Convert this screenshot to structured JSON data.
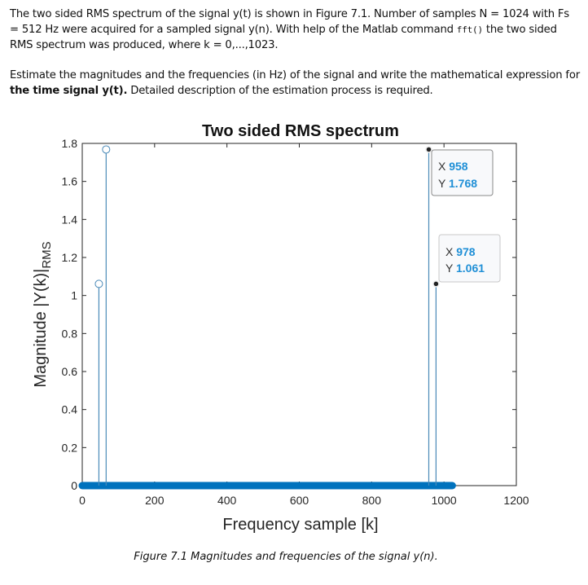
{
  "problem": {
    "paragraph1": {
      "part1": "The two sided RMS spectrum of the signal y(t) is shown in Figure 7.1. Number of samples N = 1024 with Fs = 512 Hz were acquired for a sampled signal y(n). With help of the Matlab command ",
      "code": "fft()",
      "part2": " the two sided RMS spectrum was produced, where k = 0,...,1023."
    },
    "paragraph2": {
      "part1": "Estimate the magnitudes and the frequencies (in Hz) of the signal and write the mathematical expression for ",
      "bold": "the time signal y(t).",
      "part2": " Detailed description of the estimation process is required."
    }
  },
  "figure": {
    "caption": "Figure 7.1 Magnitudes and frequencies of the signal y(n).",
    "datatips": [
      {
        "x_label": "X",
        "x_value": "958",
        "y_label": "Y",
        "y_value": "1.768"
      },
      {
        "x_label": "X",
        "x_value": "978",
        "y_label": "Y",
        "y_value": "1.061"
      }
    ]
  },
  "chart_data": {
    "type": "stem",
    "title": "Two sided RMS spectrum",
    "xlabel": "Frequency sample [k]",
    "ylabel": "Magnitude |Y(k)|",
    "ylabel_subscript": "RMS",
    "xlim": [
      0,
      1200
    ],
    "ylim": [
      0,
      1.8
    ],
    "xticks": [
      "0",
      "200",
      "400",
      "600",
      "800",
      "1000",
      "1200"
    ],
    "yticks": [
      "0",
      "0.2",
      "0.4",
      "0.6",
      "0.8",
      "1",
      "1.2",
      "1.4",
      "1.6",
      "1.8"
    ],
    "grid": false,
    "series": [
      {
        "name": "|Y(k)|RMS",
        "k_range": [
          0,
          1023
        ],
        "baseline": 0,
        "nonzero_points": [
          {
            "k": 46,
            "value": 1.061
          },
          {
            "k": 66,
            "value": 1.768
          },
          {
            "k": 958,
            "value": 1.768
          },
          {
            "k": 978,
            "value": 1.061
          }
        ]
      }
    ],
    "color": "#0072BD"
  }
}
